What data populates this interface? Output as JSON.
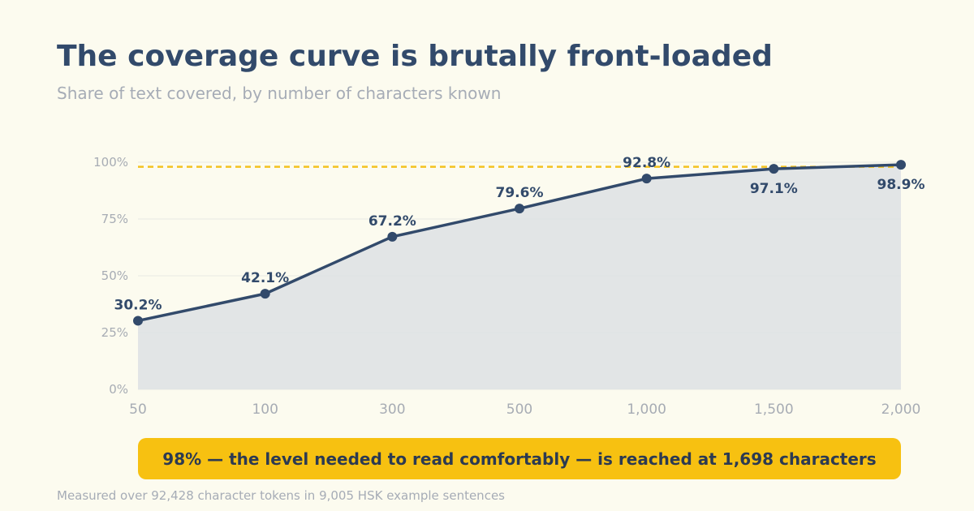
{
  "colors": {
    "background": "#fcfbef",
    "line": "#324a6b",
    "area": "#dde1e4",
    "threshold": "#f4c21f",
    "callout": "#f7c111",
    "muted": "#a7acb4"
  },
  "chart_data": {
    "type": "line",
    "title": "The coverage curve is brutally front-loaded",
    "subtitle": "Share of text covered, by number of characters known",
    "xlabel": "",
    "ylabel": "",
    "categories": [
      "50",
      "100",
      "300",
      "500",
      "1,000",
      "1,500",
      "2,000"
    ],
    "series": [
      {
        "values": [
          30.2,
          42.1,
          67.2,
          79.6,
          92.8,
          97.1,
          98.9
        ],
        "labels": [
          "30.2%",
          "42.1%",
          "67.2%",
          "79.6%",
          "92.8%",
          "97.1%",
          "98.9%"
        ]
      }
    ],
    "ylim": [
      0,
      100
    ],
    "y_ticks": [
      0,
      25,
      50,
      75,
      100
    ],
    "y_tick_labels": [
      "0%",
      "25%",
      "50%",
      "75%",
      "100%"
    ],
    "area_fill": true,
    "grid": true,
    "threshold": {
      "value": 98,
      "style": "dashed"
    },
    "annotation": "98% — the level needed to read comfortably — is reached at 1,698 characters",
    "footnote": "Measured over 92,428 character tokens in 9,005 HSK example sentences"
  }
}
